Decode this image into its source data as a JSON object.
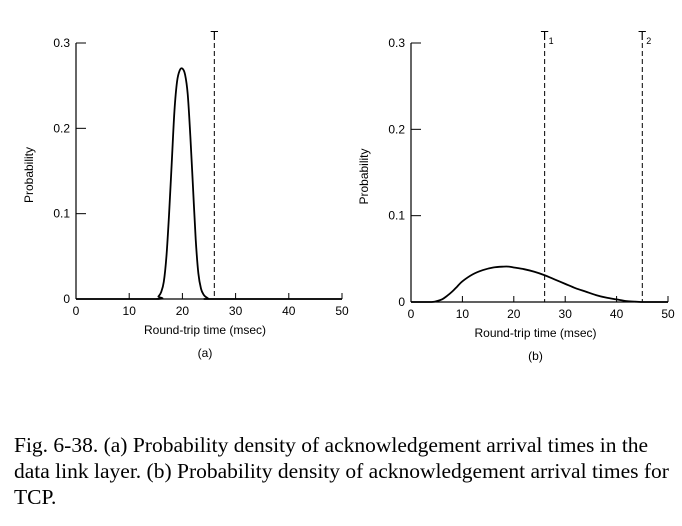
{
  "colors": {
    "ink": "#000000",
    "background": "#ffffff"
  },
  "chart_data": [
    {
      "type": "line",
      "panel_label": "(a)",
      "xlabel": "Round-trip time (msec)",
      "ylabel": "Probability",
      "xlim": [
        0,
        50
      ],
      "ylim": [
        0,
        0.3
      ],
      "x_ticks": [
        0,
        10,
        20,
        30,
        40,
        50
      ],
      "x_tick_labels": [
        "0",
        "10",
        "20",
        "30",
        "40",
        "50"
      ],
      "y_ticks": [
        0,
        0.1,
        0.2,
        0.3
      ],
      "y_tick_labels": [
        "0",
        "0.1",
        "0.2",
        "0.3"
      ],
      "grid": false,
      "series": [
        {
          "x": [
            0,
            15,
            15.5,
            16,
            16.5,
            17,
            17.5,
            18,
            18.5,
            19,
            19.5,
            20,
            20.5,
            21,
            21.5,
            22,
            22.5,
            23,
            23.5,
            24,
            24.5,
            25,
            25.5,
            26,
            50
          ],
          "y": [
            0,
            0,
            0.003,
            0.008,
            0.02,
            0.05,
            0.1,
            0.16,
            0.22,
            0.255,
            0.268,
            0.27,
            0.263,
            0.24,
            0.19,
            0.13,
            0.07,
            0.03,
            0.012,
            0.005,
            0.002,
            0,
            0,
            0,
            0
          ]
        }
      ],
      "thresholds": [
        {
          "label": "T",
          "subscript": "",
          "x": 26
        }
      ]
    },
    {
      "type": "line",
      "panel_label": "(b)",
      "xlabel": "Round-trip time (msec)",
      "ylabel": "Probability",
      "xlim": [
        0,
        50
      ],
      "ylim": [
        0,
        0.3
      ],
      "x_ticks": [
        0,
        10,
        20,
        30,
        40,
        50
      ],
      "x_tick_labels": [
        "0",
        "10",
        "20",
        "30",
        "40",
        "50"
      ],
      "y_ticks": [
        0,
        0.1,
        0.2,
        0.3
      ],
      "y_tick_labels": [
        "0",
        "0.1",
        "0.2",
        "0.3"
      ],
      "grid": false,
      "series": [
        {
          "x": [
            0,
            4,
            5,
            6,
            7,
            8,
            9,
            10,
            12,
            14,
            16,
            18,
            19,
            20,
            22,
            24,
            26,
            28,
            30,
            32,
            34,
            36,
            38,
            40,
            42,
            44,
            45,
            46,
            50
          ],
          "y": [
            0,
            0,
            0.001,
            0.003,
            0.007,
            0.012,
            0.018,
            0.024,
            0.032,
            0.037,
            0.04,
            0.041,
            0.041,
            0.04,
            0.038,
            0.035,
            0.031,
            0.026,
            0.021,
            0.016,
            0.012,
            0.008,
            0.005,
            0.003,
            0.001,
            0.0003,
            0,
            0,
            0
          ]
        }
      ],
      "thresholds": [
        {
          "label": "T",
          "subscript": "1",
          "x": 26
        },
        {
          "label": "T",
          "subscript": "2",
          "x": 45
        }
      ]
    }
  ],
  "caption": {
    "text": "Fig. 6-38. (a) Probability density of acknowledgement arrival times in the data link layer. (b) Probability density of acknowledgement arrival times for TCP."
  }
}
